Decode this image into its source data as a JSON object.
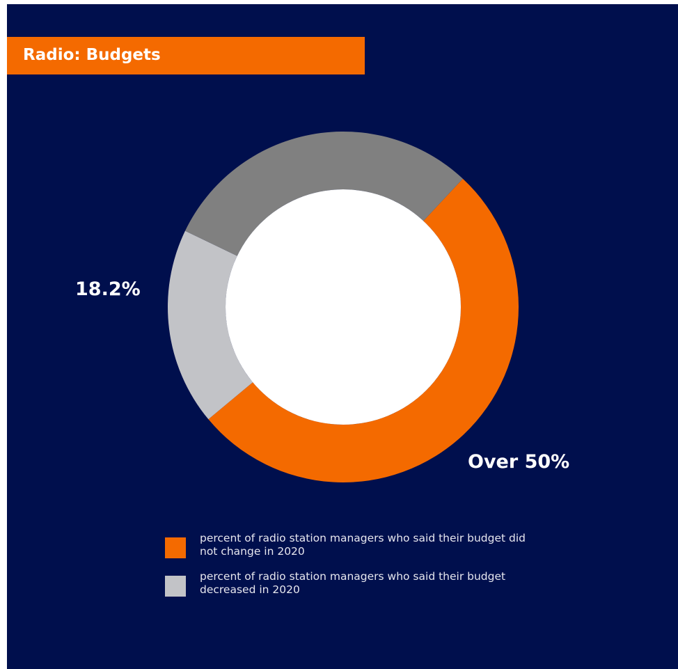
{
  "title": "Radio: Budgets",
  "colors": {
    "background": "#000f4d",
    "accent": "#f46a00",
    "center": "#ffffff"
  },
  "chart_data": {
    "type": "pie",
    "donut": true,
    "slices": [
      {
        "key": "unchanged",
        "value": 52,
        "color": "#f46a00",
        "label": "Over 50%"
      },
      {
        "key": "decreased",
        "value": 18.2,
        "color": "#c2c3c7",
        "label": "18.2%"
      },
      {
        "key": "other",
        "value": 29.8,
        "color": "#808080",
        "label": ""
      }
    ],
    "legend": [
      {
        "color": "#f46a00",
        "text": "percent of radio station managers who said their budget did not change in 2020"
      },
      {
        "color": "#c2c3c7",
        "text": "percent of radio station managers who said their budget decreased in 2020"
      }
    ]
  }
}
